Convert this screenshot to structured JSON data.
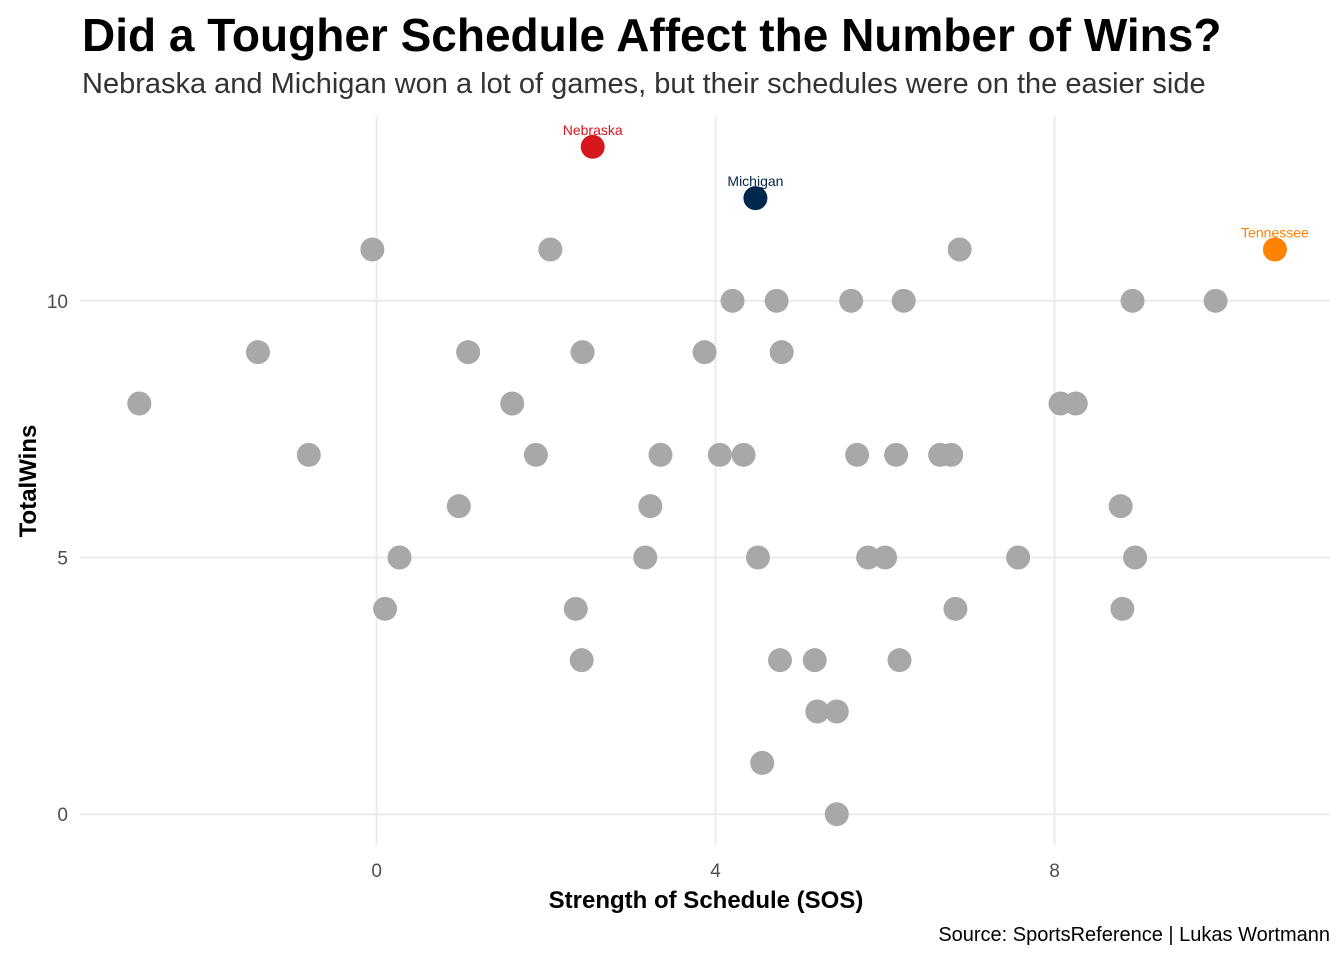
{
  "chart_data": {
    "type": "scatter",
    "title": "Did a Tougher Schedule Affect the Number of Wins?",
    "subtitle": "Nebraska and Michigan won a lot of games, but their schedules were on the easier side",
    "caption": "Source: SportsReference | Lukas Wortmann",
    "xlabel": "Strength of Schedule (SOS)",
    "ylabel": "TotalWins",
    "xlim": [
      -3.5,
      11.25
    ],
    "ylim": [
      -0.6,
      13.6
    ],
    "x_ticks": [
      0,
      4,
      8
    ],
    "y_ticks": [
      0,
      5,
      10
    ],
    "grid": true,
    "colors": {
      "default": "#a8a8a8",
      "Nebraska": "#d6171e",
      "Michigan": "#00274c",
      "Tennessee": "#ff8200"
    },
    "points": [
      {
        "x": -2.8,
        "y": 8
      },
      {
        "x": -1.4,
        "y": 9
      },
      {
        "x": -0.8,
        "y": 7
      },
      {
        "x": -0.05,
        "y": 11
      },
      {
        "x": 0.1,
        "y": 4
      },
      {
        "x": 0.27,
        "y": 5
      },
      {
        "x": 0.97,
        "y": 6
      },
      {
        "x": 1.08,
        "y": 9
      },
      {
        "x": 1.6,
        "y": 8
      },
      {
        "x": 1.88,
        "y": 7
      },
      {
        "x": 2.05,
        "y": 11
      },
      {
        "x": 2.35,
        "y": 4
      },
      {
        "x": 2.42,
        "y": 3
      },
      {
        "x": 2.43,
        "y": 9
      },
      {
        "x": 3.17,
        "y": 5
      },
      {
        "x": 3.23,
        "y": 6
      },
      {
        "x": 3.35,
        "y": 7
      },
      {
        "x": 3.87,
        "y": 9
      },
      {
        "x": 4.05,
        "y": 7
      },
      {
        "x": 4.2,
        "y": 10
      },
      {
        "x": 4.33,
        "y": 7
      },
      {
        "x": 4.5,
        "y": 5
      },
      {
        "x": 4.55,
        "y": 1
      },
      {
        "x": 4.72,
        "y": 10
      },
      {
        "x": 4.76,
        "y": 3
      },
      {
        "x": 4.78,
        "y": 9
      },
      {
        "x": 5.17,
        "y": 3
      },
      {
        "x": 5.2,
        "y": 2
      },
      {
        "x": 5.43,
        "y": 2
      },
      {
        "x": 5.43,
        "y": 0
      },
      {
        "x": 5.6,
        "y": 10
      },
      {
        "x": 5.67,
        "y": 7
      },
      {
        "x": 5.8,
        "y": 5
      },
      {
        "x": 6.0,
        "y": 5
      },
      {
        "x": 6.13,
        "y": 7
      },
      {
        "x": 6.17,
        "y": 3
      },
      {
        "x": 6.22,
        "y": 10
      },
      {
        "x": 6.65,
        "y": 7
      },
      {
        "x": 6.78,
        "y": 7
      },
      {
        "x": 6.83,
        "y": 4
      },
      {
        "x": 6.88,
        "y": 11
      },
      {
        "x": 7.57,
        "y": 5
      },
      {
        "x": 8.07,
        "y": 8
      },
      {
        "x": 8.25,
        "y": 8
      },
      {
        "x": 8.78,
        "y": 6
      },
      {
        "x": 8.8,
        "y": 4
      },
      {
        "x": 8.92,
        "y": 10
      },
      {
        "x": 8.95,
        "y": 5
      },
      {
        "x": 9.9,
        "y": 10
      },
      {
        "x": 2.55,
        "y": 13,
        "label": "Nebraska"
      },
      {
        "x": 4.47,
        "y": 12,
        "label": "Michigan"
      },
      {
        "x": 10.6,
        "y": 11,
        "label": "Tennessee"
      }
    ]
  }
}
